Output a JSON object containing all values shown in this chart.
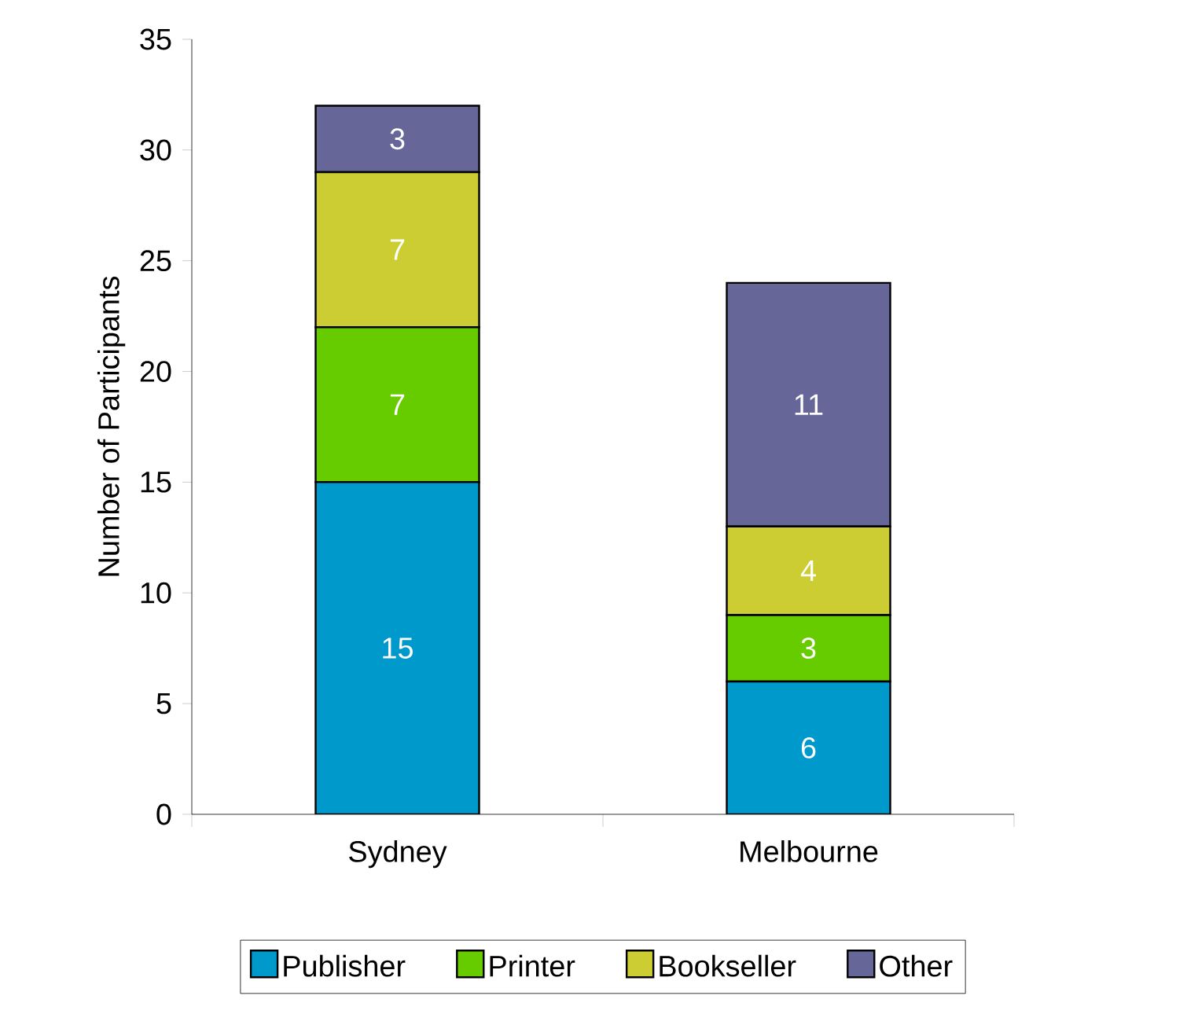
{
  "chart_data": {
    "type": "bar",
    "stacked": true,
    "ylabel": "Number of Participants",
    "categories": [
      "Sydney",
      "Melbourne"
    ],
    "series": [
      {
        "name": "Publisher",
        "color": "#0099cc",
        "values": [
          15,
          6
        ]
      },
      {
        "name": "Printer",
        "color": "#66cc00",
        "values": [
          7,
          3
        ]
      },
      {
        "name": "Bookseller",
        "color": "#cccc33",
        "values": [
          7,
          4
        ]
      },
      {
        "name": "Other",
        "color": "#666699",
        "values": [
          3,
          11
        ]
      }
    ],
    "ylim": [
      0,
      35
    ],
    "yticks": [
      0,
      5,
      10,
      15,
      20,
      25,
      30,
      35
    ],
    "data_labels": true,
    "legend": "bottom",
    "grid": false
  }
}
